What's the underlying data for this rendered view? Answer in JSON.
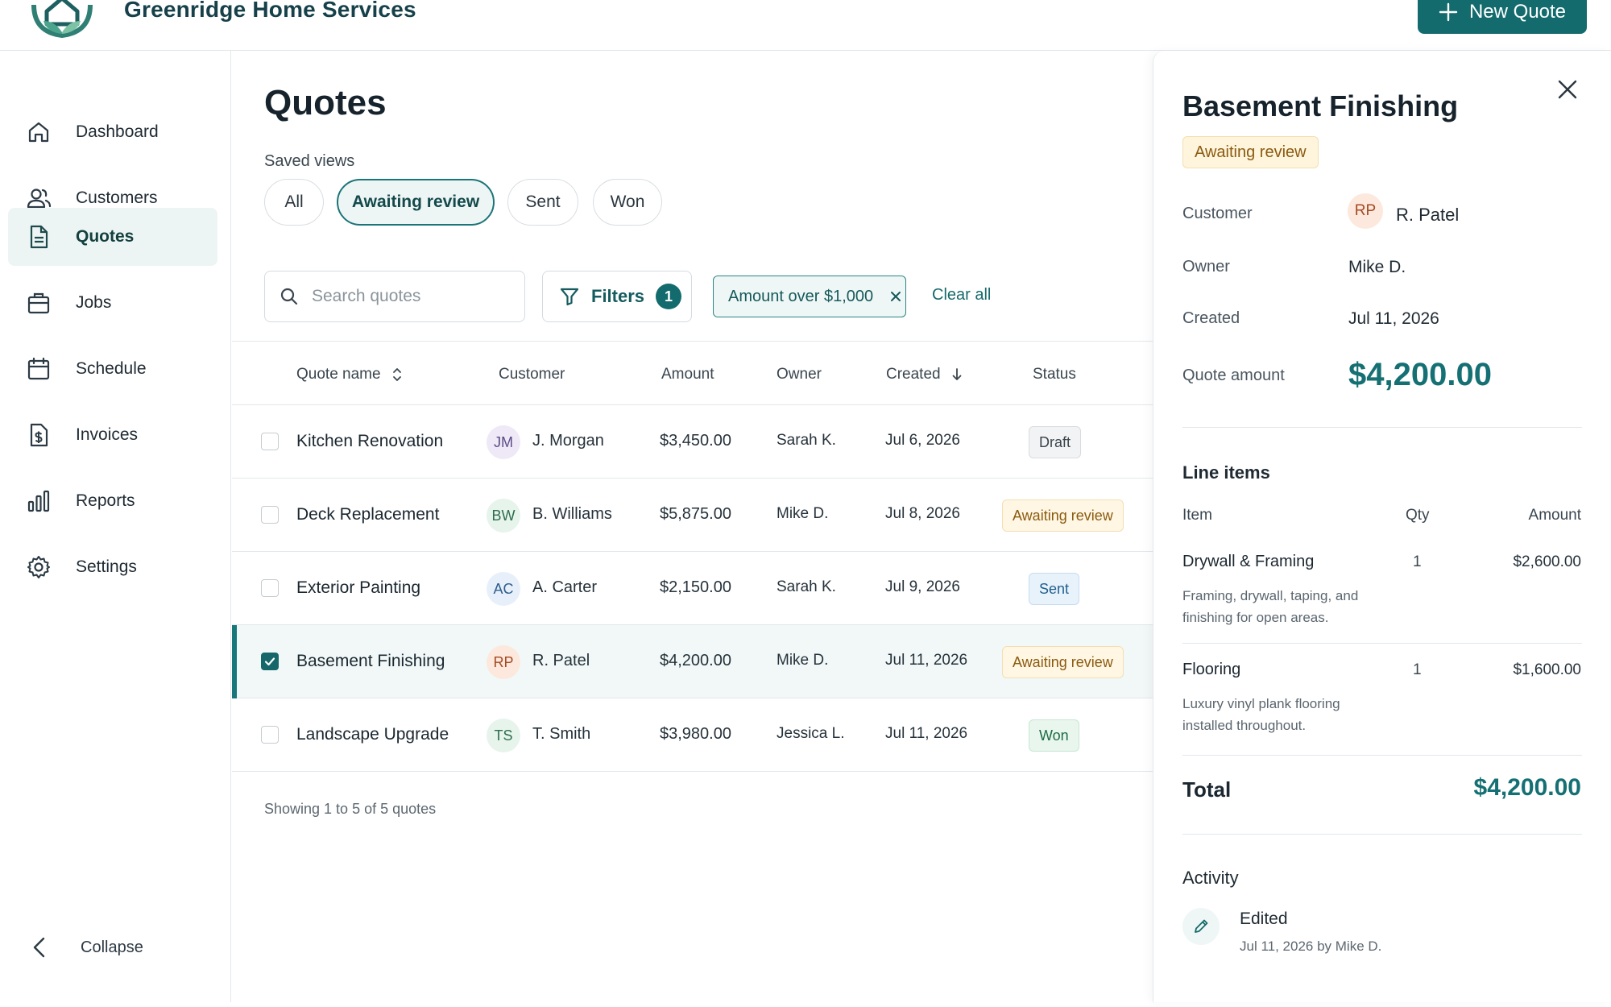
{
  "app": {
    "brand": "Greenridge Home Services",
    "new_quote_label": "New Quote"
  },
  "sidebar": {
    "items": [
      {
        "label": "Dashboard",
        "icon": "home-icon"
      },
      {
        "label": "Customers",
        "icon": "users-icon"
      },
      {
        "label": "Quotes",
        "icon": "document-icon",
        "active": true
      },
      {
        "label": "Jobs",
        "icon": "briefcase-icon"
      },
      {
        "label": "Schedule",
        "icon": "calendar-icon"
      },
      {
        "label": "Invoices",
        "icon": "invoice-dollar-icon"
      },
      {
        "label": "Reports",
        "icon": "bar-chart-icon"
      },
      {
        "label": "Settings",
        "icon": "gear-icon"
      }
    ],
    "collapse_label": "Collapse"
  },
  "main": {
    "title": "Quotes",
    "saved_views_label": "Saved views",
    "views": [
      "All",
      "Awaiting review",
      "Sent",
      "Won"
    ],
    "active_view": "Awaiting review",
    "search_placeholder": "Search quotes",
    "filters_label": "Filters",
    "filters_count": "1",
    "active_filter": "Amount over $1,000",
    "clear_all_label": "Clear all",
    "columns": [
      "Quote name",
      "Customer",
      "Amount",
      "Owner",
      "Created",
      "Status"
    ],
    "rows": [
      {
        "name": "Kitchen Renovation",
        "initials": "JM",
        "customer": "J. Morgan",
        "amount": "$3,450.00",
        "owner": "Sarah K.",
        "created": "Jul 6, 2026",
        "status": "Draft",
        "selected": false
      },
      {
        "name": "Deck Replacement",
        "initials": "BW",
        "customer": "B. Williams",
        "amount": "$5,875.00",
        "owner": "Mike D.",
        "created": "Jul 8, 2026",
        "status": "Awaiting review",
        "selected": false
      },
      {
        "name": "Exterior Painting",
        "initials": "AC",
        "customer": "A. Carter",
        "amount": "$2,150.00",
        "owner": "Sarah K.",
        "created": "Jul 9, 2026",
        "status": "Sent",
        "selected": false
      },
      {
        "name": "Basement Finishing",
        "initials": "RP",
        "customer": "R. Patel",
        "amount": "$4,200.00",
        "owner": "Mike D.",
        "created": "Jul 11, 2026",
        "status": "Awaiting review",
        "selected": true
      },
      {
        "name": "Landscape Upgrade",
        "initials": "TS",
        "customer": "T. Smith",
        "amount": "$3,980.00",
        "owner": "Jessica L.",
        "created": "Jul 11, 2026",
        "status": "Won",
        "selected": false
      }
    ],
    "footer": "Showing 1 to 5 of 5 quotes"
  },
  "detail": {
    "title": "Basement Finishing",
    "status": "Awaiting review",
    "customer_label": "Customer",
    "customer_initials": "RP",
    "customer": "R. Patel",
    "owner_label": "Owner",
    "owner": "Mike D.",
    "created_label": "Created",
    "created": "Jul 11, 2026",
    "amount_label": "Quote amount",
    "amount": "$4,200.00",
    "line_items_title": "Line items",
    "li_col_item": "Item",
    "li_col_qty": "Qty",
    "li_col_amount": "Amount",
    "line_items": [
      {
        "name": "Drywall & Framing",
        "qty": "1",
        "amount": "$2,600.00",
        "desc": "Framing, drywall, taping, and finishing for open areas."
      },
      {
        "name": "Flooring",
        "qty": "1",
        "amount": "$1,600.00",
        "desc": "Luxury vinyl plank flooring installed throughout."
      }
    ],
    "total_label": "Total",
    "total": "$4,200.00",
    "activity_title": "Activity",
    "activity_event": "Edited",
    "activity_meta": "Jul 11, 2026 by Mike D."
  },
  "colors": {
    "accent": "#136b6d",
    "review_bg": "#fff6e3",
    "sent_bg": "#e8f2fb",
    "won_bg": "#e8f6ee",
    "draft_bg": "#f2f3f4"
  }
}
